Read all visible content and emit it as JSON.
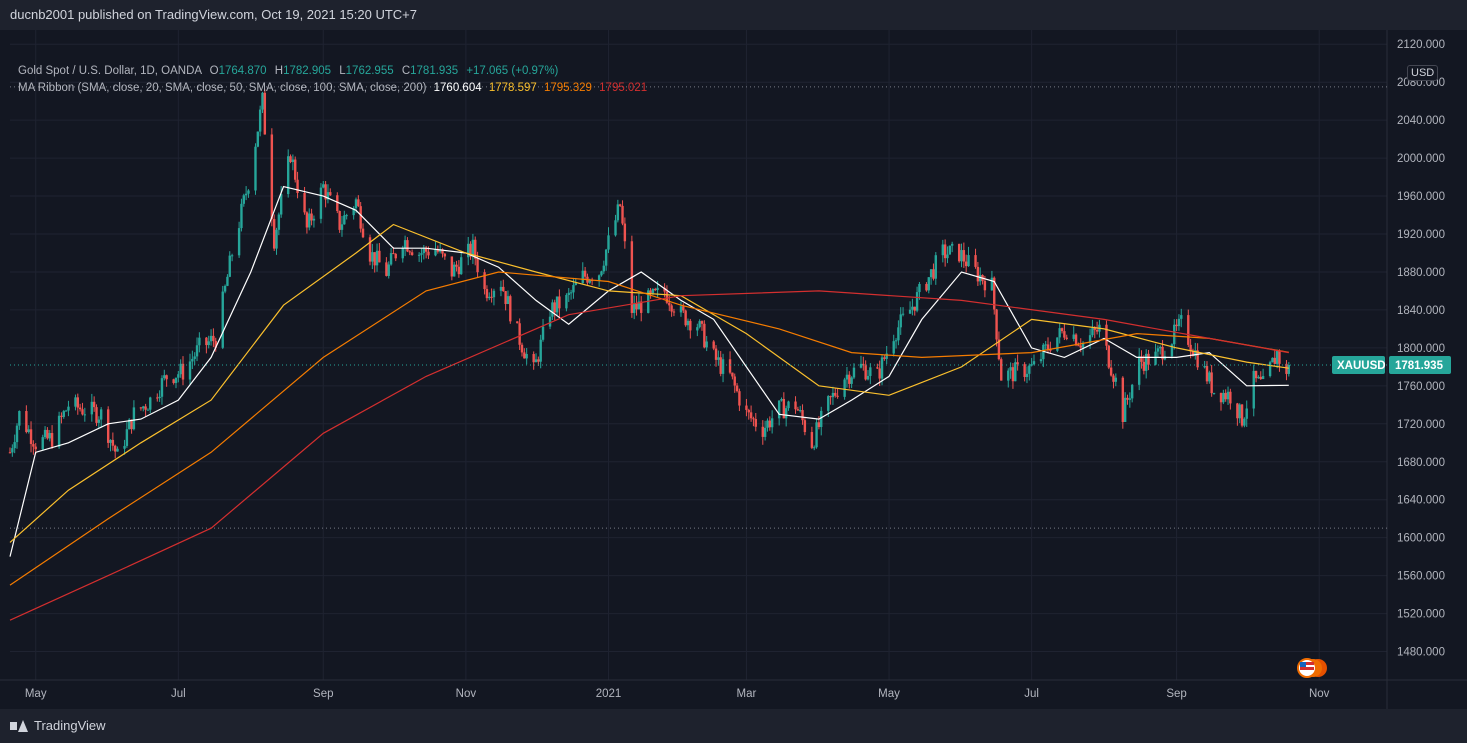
{
  "header": {
    "publisher": "ducnb2001 published on TradingView.com, Oct 19, 2021 15:20 UTC+7"
  },
  "legend": {
    "symbol": "Gold Spot / U.S. Dollar, 1D, OANDA",
    "open_key": "O",
    "open": "1764.870",
    "high_key": "H",
    "high": "1782.905",
    "low_key": "L",
    "low": "1762.955",
    "close_key": "C",
    "close": "1781.935",
    "change": "+17.065 (+0.97%)",
    "ma_label": "MA Ribbon (SMA, close, 20, SMA, close, 50, SMA, close, 100, SMA, close, 200)",
    "ma_values": [
      "1760.604",
      "1778.597",
      "1795.329",
      "1795.021"
    ]
  },
  "currency": "USD",
  "footer": {
    "brand": "TradingView"
  },
  "colors": {
    "background": "#131722",
    "up": "#26a69a",
    "down": "#ef5350",
    "ma20": "#ffffff",
    "ma50": "#fbc02d",
    "ma100": "#f57c00",
    "ma200": "#d32f2f",
    "last_price": "#26a69a"
  },
  "chart_data": {
    "type": "candlestick",
    "symbol_tag": "XAUUSD",
    "last_price": 1781.935,
    "x_range": [
      "2020-04-20",
      "2021-11-30"
    ],
    "y_range": [
      1450,
      2135
    ],
    "y_ticks": [
      "2120.000",
      "2080.000",
      "2040.000",
      "2000.000",
      "1960.000",
      "1920.000",
      "1880.000",
      "1840.000",
      "1800.000",
      "1760.000",
      "1720.000",
      "1680.000",
      "1640.000",
      "1600.000",
      "1560.000",
      "1520.000",
      "1480.000"
    ],
    "x_ticks": [
      {
        "date": "2020-05-01",
        "label": "May"
      },
      {
        "date": "2020-07-01",
        "label": "Jul"
      },
      {
        "date": "2020-09-01",
        "label": "Sep"
      },
      {
        "date": "2020-11-01",
        "label": "Nov"
      },
      {
        "date": "2021-01-01",
        "label": "2021"
      },
      {
        "date": "2021-03-01",
        "label": "Mar"
      },
      {
        "date": "2021-05-01",
        "label": "May"
      },
      {
        "date": "2021-07-01",
        "label": "Jul"
      },
      {
        "date": "2021-09-01",
        "label": "Sep"
      },
      {
        "date": "2021-11-01",
        "label": "Nov"
      }
    ],
    "reference_lines": [
      2075,
      1610
    ],
    "close_path": [
      [
        "2020-04-20",
        1690
      ],
      [
        "2020-04-24",
        1730
      ],
      [
        "2020-05-01",
        1700
      ],
      [
        "2020-05-08",
        1705
      ],
      [
        "2020-05-15",
        1740
      ],
      [
        "2020-05-22",
        1735
      ],
      [
        "2020-05-29",
        1730
      ],
      [
        "2020-06-05",
        1685
      ],
      [
        "2020-06-12",
        1730
      ],
      [
        "2020-06-19",
        1745
      ],
      [
        "2020-06-26",
        1770
      ],
      [
        "2020-07-03",
        1775
      ],
      [
        "2020-07-10",
        1800
      ],
      [
        "2020-07-17",
        1810
      ],
      [
        "2020-07-24",
        1900
      ],
      [
        "2020-07-31",
        1975
      ],
      [
        "2020-08-06",
        2060
      ],
      [
        "2020-08-11",
        1915
      ],
      [
        "2020-08-18",
        2005
      ],
      [
        "2020-08-25",
        1925
      ],
      [
        "2020-09-01",
        1970
      ],
      [
        "2020-09-08",
        1930
      ],
      [
        "2020-09-15",
        1955
      ],
      [
        "2020-09-21",
        1900
      ],
      [
        "2020-09-28",
        1880
      ],
      [
        "2020-10-05",
        1915
      ],
      [
        "2020-10-12",
        1900
      ],
      [
        "2020-10-19",
        1905
      ],
      [
        "2020-10-26",
        1880
      ],
      [
        "2020-11-04",
        1905
      ],
      [
        "2020-11-09",
        1860
      ],
      [
        "2020-11-16",
        1870
      ],
      [
        "2020-11-23",
        1815
      ],
      [
        "2020-11-30",
        1775
      ],
      [
        "2020-12-07",
        1840
      ],
      [
        "2020-12-14",
        1850
      ],
      [
        "2020-12-21",
        1875
      ],
      [
        "2020-12-28",
        1880
      ],
      [
        "2021-01-06",
        1950
      ],
      [
        "2021-01-11",
        1840
      ],
      [
        "2021-01-18",
        1850
      ],
      [
        "2021-01-25",
        1860
      ],
      [
        "2021-02-01",
        1835
      ],
      [
        "2021-02-08",
        1825
      ],
      [
        "2021-02-15",
        1790
      ],
      [
        "2021-02-22",
        1770
      ],
      [
        "2021-03-01",
        1730
      ],
      [
        "2021-03-08",
        1715
      ],
      [
        "2021-03-15",
        1735
      ],
      [
        "2021-03-22",
        1740
      ],
      [
        "2021-03-29",
        1700
      ],
      [
        "2021-04-05",
        1740
      ],
      [
        "2021-04-12",
        1770
      ],
      [
        "2021-04-19",
        1780
      ],
      [
        "2021-04-26",
        1770
      ],
      [
        "2021-05-03",
        1815
      ],
      [
        "2021-05-10",
        1840
      ],
      [
        "2021-05-17",
        1870
      ],
      [
        "2021-05-24",
        1900
      ],
      [
        "2021-05-31",
        1900
      ],
      [
        "2021-06-07",
        1880
      ],
      [
        "2021-06-14",
        1865
      ],
      [
        "2021-06-18",
        1770
      ],
      [
        "2021-06-25",
        1775
      ],
      [
        "2021-07-02",
        1780
      ],
      [
        "2021-07-09",
        1805
      ],
      [
        "2021-07-16",
        1820
      ],
      [
        "2021-07-23",
        1805
      ],
      [
        "2021-07-30",
        1820
      ],
      [
        "2021-08-06",
        1765
      ],
      [
        "2021-08-09",
        1730
      ],
      [
        "2021-08-16",
        1785
      ],
      [
        "2021-08-23",
        1790
      ],
      [
        "2021-08-30",
        1810
      ],
      [
        "2021-09-03",
        1825
      ],
      [
        "2021-09-10",
        1790
      ],
      [
        "2021-09-17",
        1755
      ],
      [
        "2021-09-24",
        1750
      ],
      [
        "2021-09-29",
        1725
      ],
      [
        "2021-10-04",
        1765
      ],
      [
        "2021-10-08",
        1760
      ],
      [
        "2021-10-14",
        1795
      ],
      [
        "2021-10-18",
        1768
      ],
      [
        "2021-10-19",
        1781.935
      ]
    ],
    "series": [
      {
        "period": 20,
        "values": [
          [
            "2020-04-20",
            1580
          ],
          [
            "2020-05-01",
            1690
          ],
          [
            "2020-05-15",
            1700
          ],
          [
            "2020-06-01",
            1720
          ],
          [
            "2020-06-15",
            1725
          ],
          [
            "2020-07-01",
            1745
          ],
          [
            "2020-07-15",
            1790
          ],
          [
            "2020-08-01",
            1880
          ],
          [
            "2020-08-15",
            1970
          ],
          [
            "2020-09-01",
            1960
          ],
          [
            "2020-09-15",
            1945
          ],
          [
            "2020-10-01",
            1905
          ],
          [
            "2020-10-15",
            1905
          ],
          [
            "2020-11-01",
            1900
          ],
          [
            "2020-11-15",
            1885
          ],
          [
            "2020-12-01",
            1850
          ],
          [
            "2020-12-15",
            1825
          ],
          [
            "2021-01-01",
            1860
          ],
          [
            "2021-01-15",
            1880
          ],
          [
            "2021-02-01",
            1850
          ],
          [
            "2021-02-15",
            1830
          ],
          [
            "2021-03-01",
            1780
          ],
          [
            "2021-03-15",
            1730
          ],
          [
            "2021-04-01",
            1725
          ],
          [
            "2021-04-15",
            1745
          ],
          [
            "2021-05-01",
            1770
          ],
          [
            "2021-05-15",
            1830
          ],
          [
            "2021-06-01",
            1880
          ],
          [
            "2021-06-15",
            1870
          ],
          [
            "2021-07-01",
            1800
          ],
          [
            "2021-07-15",
            1790
          ],
          [
            "2021-08-01",
            1810
          ],
          [
            "2021-08-15",
            1790
          ],
          [
            "2021-09-01",
            1790
          ],
          [
            "2021-09-15",
            1795
          ],
          [
            "2021-10-01",
            1760
          ],
          [
            "2021-10-19",
            1760.604
          ]
        ]
      },
      {
        "period": 50,
        "values": [
          [
            "2020-04-20",
            1595
          ],
          [
            "2020-05-15",
            1650
          ],
          [
            "2020-06-15",
            1700
          ],
          [
            "2020-07-15",
            1745
          ],
          [
            "2020-08-15",
            1845
          ],
          [
            "2020-09-15",
            1900
          ],
          [
            "2020-10-01",
            1930
          ],
          [
            "2020-11-01",
            1900
          ],
          [
            "2020-12-01",
            1880
          ],
          [
            "2021-01-01",
            1860
          ],
          [
            "2021-02-01",
            1855
          ],
          [
            "2021-03-01",
            1815
          ],
          [
            "2021-04-01",
            1760
          ],
          [
            "2021-05-01",
            1750
          ],
          [
            "2021-06-01",
            1780
          ],
          [
            "2021-07-01",
            1830
          ],
          [
            "2021-08-01",
            1820
          ],
          [
            "2021-09-01",
            1800
          ],
          [
            "2021-10-01",
            1785
          ],
          [
            "2021-10-19",
            1778.597
          ]
        ]
      },
      {
        "period": 100,
        "values": [
          [
            "2020-04-20",
            1550
          ],
          [
            "2020-06-01",
            1620
          ],
          [
            "2020-07-15",
            1690
          ],
          [
            "2020-09-01",
            1790
          ],
          [
            "2020-10-15",
            1860
          ],
          [
            "2020-11-15",
            1880
          ],
          [
            "2021-01-01",
            1870
          ],
          [
            "2021-02-01",
            1845
          ],
          [
            "2021-03-15",
            1820
          ],
          [
            "2021-04-15",
            1795
          ],
          [
            "2021-05-15",
            1790
          ],
          [
            "2021-07-01",
            1795
          ],
          [
            "2021-08-15",
            1815
          ],
          [
            "2021-09-15",
            1810
          ],
          [
            "2021-10-19",
            1795.329
          ]
        ]
      },
      {
        "period": 200,
        "values": [
          [
            "2020-04-20",
            1513
          ],
          [
            "2020-06-01",
            1560
          ],
          [
            "2020-07-15",
            1610
          ],
          [
            "2020-09-01",
            1710
          ],
          [
            "2020-10-15",
            1770
          ],
          [
            "2020-12-15",
            1835
          ],
          [
            "2021-02-01",
            1855
          ],
          [
            "2021-04-01",
            1860
          ],
          [
            "2021-06-01",
            1850
          ],
          [
            "2021-08-01",
            1830
          ],
          [
            "2021-09-15",
            1810
          ],
          [
            "2021-10-19",
            1795.021
          ]
        ]
      }
    ]
  }
}
